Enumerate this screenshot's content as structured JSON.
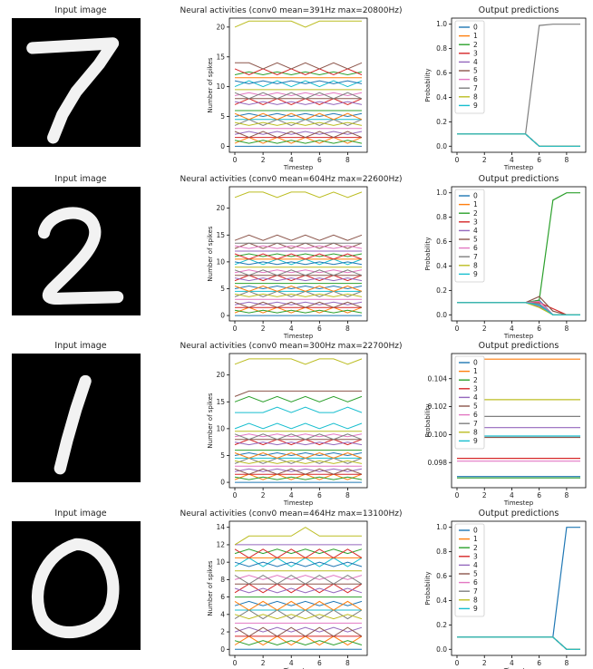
{
  "rows": [
    {
      "input": {
        "title": "Input image",
        "digit": "7"
      },
      "activity": {
        "title": "Neural activities (conv0 mean=391Hz max=20800Hz)",
        "xlabel": "Timestep",
        "ylabel": "Number of spikes",
        "xticks": [
          0,
          2,
          4,
          6,
          8
        ],
        "yticks": [
          0,
          5,
          10,
          15,
          20
        ],
        "ylim": [
          -1,
          21.5
        ],
        "tops": [
          [
            20,
            21,
            21,
            21,
            21,
            20,
            21,
            21,
            21,
            21
          ],
          [
            14,
            14,
            13,
            14,
            13,
            14,
            13,
            14,
            13,
            14
          ]
        ],
        "levels": [
          0,
          0.5,
          1,
          1.5,
          2,
          2.5,
          3,
          3.5,
          4,
          4.5,
          5,
          5.5,
          6,
          7,
          7.5,
          8,
          8.5,
          9,
          9.5,
          10,
          11,
          11.5,
          12,
          13
        ]
      },
      "predictions": {
        "title": "Output predictions",
        "xlabel": "Timestep",
        "ylabel": "Probability",
        "xticks": [
          0,
          2,
          4,
          6,
          8
        ],
        "yticks": [
          0.0,
          0.2,
          0.4,
          0.6,
          0.8,
          1.0
        ],
        "ylim": [
          -0.05,
          1.05
        ],
        "legend": [
          "0",
          "1",
          "2",
          "3",
          "4",
          "5",
          "6",
          "7",
          "8",
          "9"
        ],
        "series": [
          [
            0.1,
            0.1,
            0.1,
            0.1,
            0.1,
            0.1,
            0.0,
            0.0,
            0.0,
            0.0
          ],
          [
            0.1,
            0.1,
            0.1,
            0.1,
            0.1,
            0.1,
            0.0,
            0.0,
            0.0,
            0.0
          ],
          [
            0.1,
            0.1,
            0.1,
            0.1,
            0.1,
            0.1,
            0.0,
            0.0,
            0.0,
            0.0
          ],
          [
            0.1,
            0.1,
            0.1,
            0.1,
            0.1,
            0.1,
            0.0,
            0.0,
            0.0,
            0.0
          ],
          [
            0.1,
            0.1,
            0.1,
            0.1,
            0.1,
            0.1,
            0.0,
            0.0,
            0.0,
            0.0
          ],
          [
            0.1,
            0.1,
            0.1,
            0.1,
            0.1,
            0.1,
            0.0,
            0.0,
            0.0,
            0.0
          ],
          [
            0.1,
            0.1,
            0.1,
            0.1,
            0.1,
            0.1,
            0.0,
            0.0,
            0.0,
            0.0
          ],
          [
            0.1,
            0.1,
            0.1,
            0.1,
            0.1,
            0.1,
            0.99,
            1.0,
            1.0,
            1.0
          ],
          [
            0.1,
            0.1,
            0.1,
            0.1,
            0.1,
            0.1,
            0.0,
            0.0,
            0.0,
            0.0
          ],
          [
            0.1,
            0.1,
            0.1,
            0.1,
            0.1,
            0.1,
            0.0,
            0.0,
            0.0,
            0.0
          ]
        ]
      }
    },
    {
      "input": {
        "title": "Input image",
        "digit": "2"
      },
      "activity": {
        "title": "Neural activities (conv0 mean=604Hz max=22600Hz)",
        "xlabel": "Timestep",
        "ylabel": "Number of spikes",
        "xticks": [
          0,
          2,
          4,
          6,
          8
        ],
        "yticks": [
          0,
          5,
          10,
          15,
          20
        ],
        "ylim": [
          -1,
          24
        ],
        "tops": [
          [
            22,
            23,
            23,
            22,
            23,
            23,
            22,
            23,
            22,
            23
          ],
          [
            14,
            15,
            14,
            15,
            14,
            15,
            14,
            15,
            14,
            15
          ]
        ],
        "levels": [
          0,
          0.5,
          1,
          1.5,
          2,
          2.5,
          3,
          3.5,
          4,
          4.5,
          5,
          5.5,
          6,
          6.5,
          7,
          7.5,
          8,
          8.5,
          9,
          9.5,
          10,
          10.5,
          11,
          11.5,
          12,
          12.5,
          13,
          13.5
        ]
      },
      "predictions": {
        "title": "Output predictions",
        "xlabel": "Timestep",
        "ylabel": "Probability",
        "xticks": [
          0,
          2,
          4,
          6,
          8
        ],
        "yticks": [
          0.0,
          0.2,
          0.4,
          0.6,
          0.8,
          1.0
        ],
        "ylim": [
          -0.05,
          1.05
        ],
        "legend": [
          "0",
          "1",
          "2",
          "3",
          "4",
          "5",
          "6",
          "7",
          "8",
          "9"
        ],
        "series": [
          [
            0.1,
            0.1,
            0.1,
            0.1,
            0.1,
            0.1,
            0.12,
            0.0,
            0.0,
            0.0
          ],
          [
            0.1,
            0.1,
            0.1,
            0.1,
            0.1,
            0.1,
            0.08,
            0.0,
            0.0,
            0.0
          ],
          [
            0.1,
            0.1,
            0.1,
            0.1,
            0.1,
            0.1,
            0.12,
            0.94,
            1.0,
            1.0
          ],
          [
            0.1,
            0.1,
            0.1,
            0.1,
            0.1,
            0.1,
            0.1,
            0.05,
            0.0,
            0.0
          ],
          [
            0.1,
            0.1,
            0.1,
            0.1,
            0.1,
            0.1,
            0.07,
            0.0,
            0.0,
            0.0
          ],
          [
            0.1,
            0.1,
            0.1,
            0.1,
            0.1,
            0.1,
            0.15,
            0.03,
            0.0,
            0.0
          ],
          [
            0.1,
            0.1,
            0.1,
            0.1,
            0.1,
            0.1,
            0.11,
            0.0,
            0.0,
            0.0
          ],
          [
            0.1,
            0.1,
            0.1,
            0.1,
            0.1,
            0.1,
            0.09,
            0.0,
            0.0,
            0.0
          ],
          [
            0.1,
            0.1,
            0.1,
            0.1,
            0.1,
            0.1,
            0.06,
            0.0,
            0.0,
            0.0
          ],
          [
            0.1,
            0.1,
            0.1,
            0.1,
            0.1,
            0.1,
            0.08,
            0.0,
            0.0,
            0.0
          ]
        ]
      }
    },
    {
      "input": {
        "title": "Input image",
        "digit": "1"
      },
      "activity": {
        "title": "Neural activities (conv0 mean=300Hz max=22700Hz)",
        "xlabel": "Timestep",
        "ylabel": "Number of spikes",
        "xticks": [
          0,
          2,
          4,
          6,
          8
        ],
        "yticks": [
          0,
          5,
          10,
          15,
          20
        ],
        "ylim": [
          -1,
          24
        ],
        "tops": [
          [
            22,
            23,
            23,
            23,
            23,
            22,
            23,
            23,
            22,
            23
          ],
          [
            16,
            17,
            17,
            17,
            17,
            17,
            17,
            17,
            17,
            17
          ],
          [
            15,
            16,
            15,
            16,
            15,
            16,
            15,
            16,
            15,
            16
          ],
          [
            13,
            13,
            13,
            14,
            13,
            14,
            13,
            13,
            14,
            13
          ]
        ],
        "levels": [
          0,
          0.5,
          1,
          1.5,
          2,
          2.5,
          3,
          3.5,
          4,
          4.5,
          5,
          5.5,
          6,
          7,
          7.5,
          8,
          8.5,
          9,
          9.5,
          10
        ]
      },
      "predictions": {
        "title": "Output predictions",
        "xlabel": "Timestep",
        "ylabel": "Probability",
        "xticks": [
          0,
          2,
          4,
          6,
          8
        ],
        "yticks": [
          0.098,
          0.1,
          0.102,
          0.104
        ],
        "yticklabels": [
          "0.098",
          "0.100",
          "0.102",
          "0.104"
        ],
        "ylim": [
          0.0962,
          0.1058
        ],
        "legend": [
          "0",
          "1",
          "2",
          "3",
          "4",
          "5",
          "6",
          "7",
          "8",
          "9"
        ],
        "series": [
          [
            0.097,
            0.097,
            0.097,
            0.097,
            0.097,
            0.097,
            0.097,
            0.097,
            0.097,
            0.097
          ],
          [
            0.1054,
            0.1054,
            0.1054,
            0.1054,
            0.1054,
            0.1054,
            0.1054,
            0.1054,
            0.1054,
            0.1054
          ],
          [
            0.0969,
            0.0969,
            0.0969,
            0.0969,
            0.0969,
            0.0969,
            0.0969,
            0.0969,
            0.0969,
            0.0969
          ],
          [
            0.0983,
            0.0983,
            0.0983,
            0.0983,
            0.0983,
            0.0983,
            0.0983,
            0.0983,
            0.0983,
            0.0983
          ],
          [
            0.1005,
            0.1005,
            0.1005,
            0.1005,
            0.1005,
            0.1005,
            0.1005,
            0.1005,
            0.1005,
            0.1005
          ],
          [
            0.0998,
            0.0998,
            0.0998,
            0.0998,
            0.0998,
            0.0998,
            0.0998,
            0.0998,
            0.0998,
            0.0998
          ],
          [
            0.0981,
            0.0981,
            0.0981,
            0.0981,
            0.0981,
            0.0981,
            0.0981,
            0.0981,
            0.0981,
            0.0981
          ],
          [
            0.1013,
            0.1013,
            0.1013,
            0.1013,
            0.1013,
            0.1013,
            0.1013,
            0.1013,
            0.1013,
            0.1013
          ],
          [
            0.1025,
            0.1025,
            0.1025,
            0.1025,
            0.1025,
            0.1025,
            0.1025,
            0.1025,
            0.1025,
            0.1025
          ],
          [
            0.0999,
            0.0999,
            0.0999,
            0.0999,
            0.0999,
            0.0999,
            0.0999,
            0.0999,
            0.0999,
            0.0999
          ]
        ]
      }
    },
    {
      "input": {
        "title": "Input image",
        "digit": "0"
      },
      "activity": {
        "title": "Neural activities (conv0 mean=464Hz max=13100Hz)",
        "xlabel": "Timestep",
        "ylabel": "Number of spikes",
        "xticks": [
          0,
          2,
          4,
          6,
          8
        ],
        "yticks": [
          0,
          2,
          4,
          6,
          8,
          10,
          12,
          14
        ],
        "ylim": [
          -0.7,
          14.7
        ],
        "tops": [
          [
            12,
            13,
            13,
            13,
            13,
            14,
            13,
            13,
            13,
            13
          ]
        ],
        "levels": [
          0,
          0.5,
          1,
          1.5,
          2,
          2.5,
          3,
          3.5,
          4,
          4.5,
          5,
          5.5,
          6,
          6.5,
          7,
          7.5,
          8,
          8.5,
          9,
          9.5,
          10,
          10.5,
          11,
          11.5,
          12
        ]
      },
      "predictions": {
        "title": "Output predictions",
        "xlabel": "Timestep",
        "ylabel": "Probability",
        "xticks": [
          0,
          2,
          4,
          6,
          8
        ],
        "yticks": [
          0.0,
          0.2,
          0.4,
          0.6,
          0.8,
          1.0
        ],
        "ylim": [
          -0.05,
          1.05
        ],
        "legend": [
          "0",
          "1",
          "2",
          "3",
          "4",
          "5",
          "6",
          "7",
          "8",
          "9"
        ],
        "series": [
          [
            0.1,
            0.1,
            0.1,
            0.1,
            0.1,
            0.1,
            0.1,
            0.1,
            1.0,
            1.0
          ],
          [
            0.1,
            0.1,
            0.1,
            0.1,
            0.1,
            0.1,
            0.1,
            0.1,
            0.0,
            0.0
          ],
          [
            0.1,
            0.1,
            0.1,
            0.1,
            0.1,
            0.1,
            0.1,
            0.1,
            0.0,
            0.0
          ],
          [
            0.1,
            0.1,
            0.1,
            0.1,
            0.1,
            0.1,
            0.1,
            0.1,
            0.0,
            0.0
          ],
          [
            0.1,
            0.1,
            0.1,
            0.1,
            0.1,
            0.1,
            0.1,
            0.1,
            0.0,
            0.0
          ],
          [
            0.1,
            0.1,
            0.1,
            0.1,
            0.1,
            0.1,
            0.1,
            0.1,
            0.0,
            0.0
          ],
          [
            0.1,
            0.1,
            0.1,
            0.1,
            0.1,
            0.1,
            0.1,
            0.1,
            0.0,
            0.0
          ],
          [
            0.1,
            0.1,
            0.1,
            0.1,
            0.1,
            0.1,
            0.1,
            0.1,
            0.0,
            0.0
          ],
          [
            0.1,
            0.1,
            0.1,
            0.1,
            0.1,
            0.1,
            0.1,
            0.1,
            0.0,
            0.0
          ],
          [
            0.1,
            0.1,
            0.1,
            0.1,
            0.1,
            0.1,
            0.1,
            0.1,
            0.0,
            0.0
          ]
        ]
      }
    }
  ],
  "chart_data": [
    {
      "type": "line",
      "title": "Output predictions",
      "xlabel": "Timestep",
      "ylabel": "Probability",
      "x": [
        0,
        1,
        2,
        3,
        4,
        5,
        6,
        7,
        8,
        9
      ],
      "series": [
        {
          "name": "7",
          "values": [
            0.1,
            0.1,
            0.1,
            0.1,
            0.1,
            0.1,
            0.99,
            1.0,
            1.0,
            1.0
          ]
        },
        {
          "name": "0",
          "values": [
            0.1,
            0.1,
            0.1,
            0.1,
            0.1,
            0.1,
            0.0,
            0.0,
            0.0,
            0.0
          ]
        }
      ]
    },
    {
      "type": "line",
      "title": "Output predictions",
      "xlabel": "Timestep",
      "ylabel": "Probability",
      "x": [
        0,
        1,
        2,
        3,
        4,
        5,
        6,
        7,
        8,
        9
      ],
      "series": [
        {
          "name": "2",
          "values": [
            0.1,
            0.1,
            0.1,
            0.1,
            0.1,
            0.1,
            0.12,
            0.94,
            1.0,
            1.0
          ]
        }
      ]
    },
    {
      "type": "line",
      "title": "Output predictions",
      "xlabel": "Timestep",
      "ylabel": "Probability",
      "x": [
        0,
        1,
        2,
        3,
        4,
        5,
        6,
        7,
        8,
        9
      ],
      "series": [
        {
          "name": "1",
          "values": [
            0.1054,
            0.1054,
            0.1054,
            0.1054,
            0.1054,
            0.1054,
            0.1054,
            0.1054,
            0.1054,
            0.1054
          ]
        },
        {
          "name": "8",
          "values": [
            0.1025,
            0.1025,
            0.1025,
            0.1025,
            0.1025,
            0.1025,
            0.1025,
            0.1025,
            0.1025,
            0.1025
          ]
        }
      ]
    },
    {
      "type": "line",
      "title": "Output predictions",
      "xlabel": "Timestep",
      "ylabel": "Probability",
      "x": [
        0,
        1,
        2,
        3,
        4,
        5,
        6,
        7,
        8,
        9
      ],
      "series": [
        {
          "name": "0",
          "values": [
            0.1,
            0.1,
            0.1,
            0.1,
            0.1,
            0.1,
            0.1,
            0.1,
            1.0,
            1.0
          ]
        }
      ]
    }
  ],
  "palette": [
    "#1f77b4",
    "#ff7f0e",
    "#2ca02c",
    "#d62728",
    "#9467bd",
    "#8c564b",
    "#e377c2",
    "#7f7f7f",
    "#bcbd22",
    "#17becf"
  ]
}
